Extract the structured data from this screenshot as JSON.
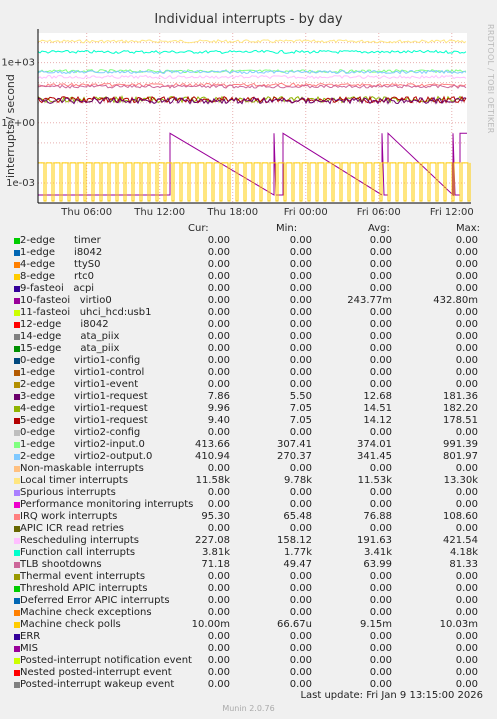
{
  "title": "Individual interrupts - by day",
  "ylabel": "interrupts / second",
  "watermark": "RRDTOOL / TOBI OETIKER",
  "legend_header": {
    "cur": "Cur:",
    "min": "Min:",
    "avg": "Avg:",
    "max": "Max:"
  },
  "legend": [
    {
      "label": "2-edge      timer",
      "color": "#00cc00",
      "cur": "0.00",
      "min": "0.00",
      "avg": "0.00",
      "max": "0.00"
    },
    {
      "label": "1-edge      i8042",
      "color": "#0066b3",
      "cur": "0.00",
      "min": "0.00",
      "avg": "0.00",
      "max": "0.00"
    },
    {
      "label": "4-edge      ttyS0",
      "color": "#ff8000",
      "cur": "0.00",
      "min": "0.00",
      "avg": "0.00",
      "max": "0.00"
    },
    {
      "label": "8-edge      rtc0",
      "color": "#ffcc00",
      "cur": "0.00",
      "min": "0.00",
      "avg": "0.00",
      "max": "0.00"
    },
    {
      "label": "9-fasteoi   acpi",
      "color": "#330099",
      "cur": "0.00",
      "min": "0.00",
      "avg": "0.00",
      "max": "0.00"
    },
    {
      "label": "10-fasteoi   virtio0",
      "color": "#990099",
      "cur": "0.00",
      "min": "0.00",
      "avg": "243.77m",
      "max": "432.80m"
    },
    {
      "label": "11-fasteoi   uhci_hcd:usb1",
      "color": "#ccff00",
      "cur": "0.00",
      "min": "0.00",
      "avg": "0.00",
      "max": "0.00"
    },
    {
      "label": "12-edge      i8042",
      "color": "#ff0000",
      "cur": "0.00",
      "min": "0.00",
      "avg": "0.00",
      "max": "0.00"
    },
    {
      "label": "14-edge      ata_piix",
      "color": "#808080",
      "cur": "0.00",
      "min": "0.00",
      "avg": "0.00",
      "max": "0.00"
    },
    {
      "label": "15-edge      ata_piix",
      "color": "#008f00",
      "cur": "0.00",
      "min": "0.00",
      "avg": "0.00",
      "max": "0.00"
    },
    {
      "label": "0-edge      virtio1-config",
      "color": "#00487d",
      "cur": "0.00",
      "min": "0.00",
      "avg": "0.00",
      "max": "0.00"
    },
    {
      "label": "1-edge      virtio1-control",
      "color": "#b35a00",
      "cur": "0.00",
      "min": "0.00",
      "avg": "0.00",
      "max": "0.00"
    },
    {
      "label": "2-edge      virtio1-event",
      "color": "#b38f00",
      "cur": "0.00",
      "min": "0.00",
      "avg": "0.00",
      "max": "0.00"
    },
    {
      "label": "3-edge      virtio1-request",
      "color": "#6b006b",
      "cur": "7.86",
      "min": "5.50",
      "avg": "12.68",
      "max": "181.36"
    },
    {
      "label": "4-edge      virtio1-request",
      "color": "#8fb300",
      "cur": "9.96",
      "min": "7.05",
      "avg": "14.51",
      "max": "182.20"
    },
    {
      "label": "5-edge      virtio1-request",
      "color": "#b30000",
      "cur": "9.40",
      "min": "7.05",
      "avg": "14.12",
      "max": "178.51"
    },
    {
      "label": "0-edge      virtio2-config",
      "color": "#bebebe",
      "cur": "0.00",
      "min": "0.00",
      "avg": "0.00",
      "max": "0.00"
    },
    {
      "label": "1-edge      virtio2-input.0",
      "color": "#80ff80",
      "cur": "413.66",
      "min": "307.41",
      "avg": "374.01",
      "max": "991.39"
    },
    {
      "label": "2-edge      virtio2-output.0",
      "color": "#80c9ff",
      "cur": "410.94",
      "min": "270.37",
      "avg": "341.45",
      "max": "801.97"
    },
    {
      "label": "Non-maskable interrupts",
      "color": "#ffc080",
      "cur": "0.00",
      "min": "0.00",
      "avg": "0.00",
      "max": "0.00"
    },
    {
      "label": "Local timer interrupts",
      "color": "#ffe680",
      "cur": "11.58k",
      "min": "9.78k",
      "avg": "11.53k",
      "max": "13.30k"
    },
    {
      "label": "Spurious interrupts",
      "color": "#aa80ff",
      "cur": "0.00",
      "min": "0.00",
      "avg": "0.00",
      "max": "0.00"
    },
    {
      "label": "Performance monitoring interrupts",
      "color": "#ee00cc",
      "cur": "0.00",
      "min": "0.00",
      "avg": "0.00",
      "max": "0.00"
    },
    {
      "label": "IRQ work interrupts",
      "color": "#ff8080",
      "cur": "95.30",
      "min": "65.48",
      "avg": "76.88",
      "max": "108.60"
    },
    {
      "label": "APIC ICR read retries",
      "color": "#666600",
      "cur": "0.00",
      "min": "0.00",
      "avg": "0.00",
      "max": "0.00"
    },
    {
      "label": "Rescheduling interrupts",
      "color": "#ffbfff",
      "cur": "227.08",
      "min": "158.12",
      "avg": "191.63",
      "max": "421.54"
    },
    {
      "label": "Function call interrupts",
      "color": "#00ffcc",
      "cur": "3.81k",
      "min": "1.77k",
      "avg": "3.41k",
      "max": "4.18k"
    },
    {
      "label": "TLB shootdowns",
      "color": "#cc6699",
      "cur": "71.18",
      "min": "49.47",
      "avg": "63.99",
      "max": "81.33"
    },
    {
      "label": "Thermal event interrupts",
      "color": "#999900",
      "cur": "0.00",
      "min": "0.00",
      "avg": "0.00",
      "max": "0.00"
    },
    {
      "label": "Threshold APIC interrupts",
      "color": "#00cc00",
      "cur": "0.00",
      "min": "0.00",
      "avg": "0.00",
      "max": "0.00"
    },
    {
      "label": "Deferred Error APIC interrupts",
      "color": "#0066b3",
      "cur": "0.00",
      "min": "0.00",
      "avg": "0.00",
      "max": "0.00"
    },
    {
      "label": "Machine check exceptions",
      "color": "#ff8000",
      "cur": "0.00",
      "min": "0.00",
      "avg": "0.00",
      "max": "0.00"
    },
    {
      "label": "Machine check polls",
      "color": "#ffcc00",
      "cur": "10.00m",
      "min": "66.67u",
      "avg": "9.15m",
      "max": "10.03m"
    },
    {
      "label": "ERR",
      "color": "#330099",
      "cur": "0.00",
      "min": "0.00",
      "avg": "0.00",
      "max": "0.00"
    },
    {
      "label": "MIS",
      "color": "#990099",
      "cur": "0.00",
      "min": "0.00",
      "avg": "0.00",
      "max": "0.00"
    },
    {
      "label": "Posted-interrupt notification event",
      "color": "#ccff00",
      "cur": "0.00",
      "min": "0.00",
      "avg": "0.00",
      "max": "0.00"
    },
    {
      "label": "Nested posted-interrupt event",
      "color": "#ff0000",
      "cur": "0.00",
      "min": "0.00",
      "avg": "0.00",
      "max": "0.00"
    },
    {
      "label": "Posted-interrupt wakeup event",
      "color": "#808080",
      "cur": "0.00",
      "min": "0.00",
      "avg": "0.00",
      "max": "0.00"
    }
  ],
  "footer": "Last update: Fri Jan  9 13:15:00 2026",
  "munin": "Munin 2.0.76",
  "chart_data": {
    "type": "line",
    "title": "Individual interrupts - by day",
    "ylabel": "interrupts / second",
    "yscale": "log",
    "ylim": [
      0.0001,
      30000
    ],
    "yticks": [
      {
        "label": "1e-03",
        "value": 0.001
      },
      {
        "label": "1e+00",
        "value": 1
      },
      {
        "label": "1e+03",
        "value": 1000
      }
    ],
    "xlim": [
      "Thu 02:00",
      "Fri 13:15"
    ],
    "xticks": [
      "Thu 06:00",
      "Thu 12:00",
      "Thu 18:00",
      "Fri 00:00",
      "Fri 06:00",
      "Fri 12:00"
    ],
    "grid": true,
    "series": [
      {
        "name": "Local timer interrupts",
        "color": "#ffe680",
        "level": 11530
      },
      {
        "name": "Function call interrupts",
        "color": "#00ffcc",
        "level": 3410
      },
      {
        "name": "1-edge virtio2-input.0",
        "color": "#80ff80",
        "level": 374
      },
      {
        "name": "2-edge virtio2-output.0",
        "color": "#80c9ff",
        "level": 341
      },
      {
        "name": "Rescheduling interrupts",
        "color": "#ffbfff",
        "level": 192
      },
      {
        "name": "IRQ work interrupts",
        "color": "#ff8080",
        "level": 77
      },
      {
        "name": "TLB shootdowns",
        "color": "#cc6699",
        "level": 64
      },
      {
        "name": "4-edge virtio1-request",
        "color": "#8fb300",
        "level": 14.5
      },
      {
        "name": "5-edge virtio1-request",
        "color": "#b30000",
        "level": 14.1
      },
      {
        "name": "3-edge virtio1-request",
        "color": "#6b006b",
        "level": 12.7
      },
      {
        "name": "10-fasteoi virtio0",
        "color": "#990099",
        "level": 0.3
      },
      {
        "name": "Machine check polls",
        "color": "#ffcc00",
        "level": 0.01
      }
    ]
  }
}
